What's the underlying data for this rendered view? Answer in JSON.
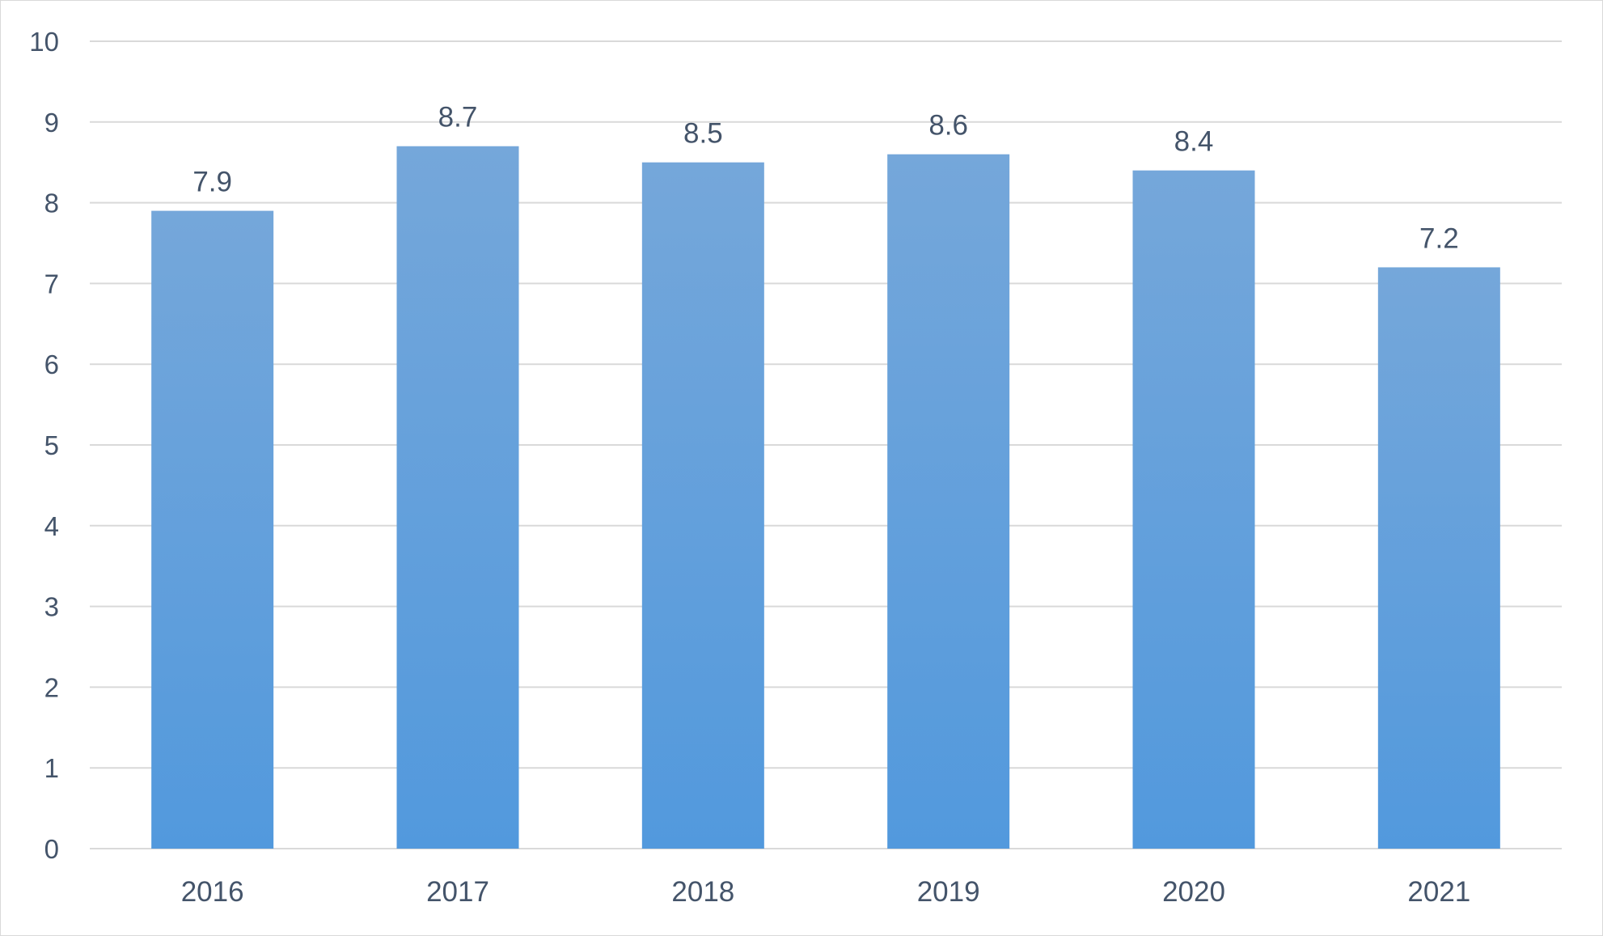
{
  "chart_data": {
    "type": "bar",
    "categories": [
      "2016",
      "2017",
      "2018",
      "2019",
      "2020",
      "2021"
    ],
    "values": [
      7.9,
      8.7,
      8.5,
      8.6,
      8.4,
      7.2
    ],
    "data_labels": [
      "7.9",
      "8.7",
      "8.5",
      "8.6",
      "8.4",
      "7.2"
    ],
    "y_ticks": [
      "0",
      "1",
      "2",
      "3",
      "4",
      "5",
      "6",
      "7",
      "8",
      "9",
      "10"
    ],
    "title": "",
    "xlabel": "",
    "ylabel": "",
    "ylim": [
      0,
      10
    ],
    "grid": true,
    "legend": "none",
    "colors": {
      "bar_top": "#75a7da",
      "bar_bottom": "#5299dd",
      "grid": "#d9d9d9",
      "text": "#44546a"
    }
  }
}
